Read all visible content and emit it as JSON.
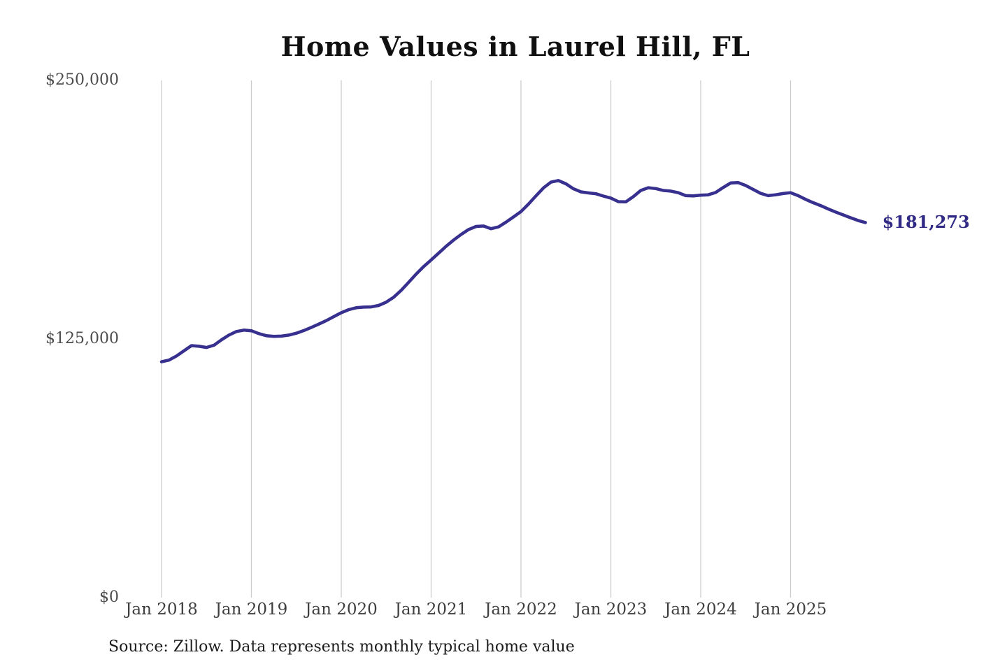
{
  "title": "Home Values in Laurel Hill, FL",
  "source_note": "Source: Zillow. Data represents monthly typical home value",
  "latest_value_label": "$181,273",
  "colors": {
    "line": "#37308f",
    "annotation": "#312b85",
    "gridline": "#cccccc",
    "y_tick_text": "#4c4c4c",
    "x_tick_text": "#3e3e3e",
    "title_text": "#101010",
    "background": "#ffffff"
  },
  "chart_data": {
    "type": "line",
    "title": "Home Values in Laurel Hill, FL",
    "series_name": "Monthly typical home value",
    "xlabel": "",
    "ylabel": "",
    "ylim": [
      0,
      250000
    ],
    "grid": "vertical-only",
    "legend": "none",
    "months": [
      "2018-01",
      "2018-02",
      "2018-03",
      "2018-04",
      "2018-05",
      "2018-06",
      "2018-07",
      "2018-08",
      "2018-09",
      "2018-10",
      "2018-11",
      "2018-12",
      "2019-01",
      "2019-02",
      "2019-03",
      "2019-04",
      "2019-05",
      "2019-06",
      "2019-07",
      "2019-08",
      "2019-09",
      "2019-10",
      "2019-11",
      "2019-12",
      "2020-01",
      "2020-02",
      "2020-03",
      "2020-04",
      "2020-05",
      "2020-06",
      "2020-07",
      "2020-08",
      "2020-09",
      "2020-10",
      "2020-11",
      "2020-12",
      "2021-01",
      "2021-02",
      "2021-03",
      "2021-04",
      "2021-05",
      "2021-06",
      "2021-07",
      "2021-08",
      "2021-09",
      "2021-10",
      "2021-11",
      "2021-12",
      "2022-01",
      "2022-02",
      "2022-03",
      "2022-04",
      "2022-05",
      "2022-06",
      "2022-07",
      "2022-08",
      "2022-09",
      "2022-10",
      "2022-11",
      "2022-12",
      "2023-01",
      "2023-02",
      "2023-03",
      "2023-04",
      "2023-05",
      "2023-06",
      "2023-07",
      "2023-08",
      "2023-09",
      "2023-10",
      "2023-11",
      "2023-12",
      "2024-01",
      "2024-02",
      "2024-03",
      "2024-04",
      "2024-05",
      "2024-06",
      "2024-07",
      "2024-08",
      "2024-09",
      "2024-10",
      "2024-11",
      "2024-12",
      "2025-01",
      "2025-02",
      "2025-03",
      "2025-04",
      "2025-05",
      "2025-06",
      "2025-07",
      "2025-08",
      "2025-09",
      "2025-10",
      "2025-11"
    ],
    "values": [
      114000,
      114800,
      116800,
      119300,
      121800,
      121500,
      120900,
      122000,
      124600,
      126900,
      128600,
      129300,
      129000,
      127600,
      126600,
      126300,
      126400,
      126900,
      127800,
      129100,
      130600,
      132200,
      133900,
      135800,
      137700,
      139200,
      140100,
      140400,
      140500,
      141200,
      142800,
      145200,
      148500,
      152400,
      156400,
      160000,
      163200,
      166500,
      169800,
      172800,
      175500,
      177900,
      179400,
      179600,
      178300,
      179200,
      181500,
      184000,
      186600,
      190200,
      194200,
      198000,
      200800,
      201600,
      200000,
      197600,
      196100,
      195600,
      195200,
      194100,
      193100,
      191400,
      191300,
      193800,
      196800,
      198100,
      197700,
      196800,
      196500,
      195700,
      194300,
      194200,
      194500,
      194700,
      195800,
      198200,
      200400,
      200600,
      199200,
      197300,
      195400,
      194300,
      194700,
      195300,
      195700,
      194300,
      192500,
      190900,
      189500,
      187900,
      186400,
      185000,
      183600,
      182300,
      181273
    ],
    "y_ticks": [
      {
        "value": 0,
        "label": "$0"
      },
      {
        "value": 125000,
        "label": "$125,000"
      },
      {
        "value": 250000,
        "label": "$250,000"
      }
    ],
    "x_ticks": [
      {
        "month": "2018-01",
        "label": "Jan 2018"
      },
      {
        "month": "2019-01",
        "label": "Jan 2019"
      },
      {
        "month": "2020-01",
        "label": "Jan 2020"
      },
      {
        "month": "2021-01",
        "label": "Jan 2021"
      },
      {
        "month": "2022-01",
        "label": "Jan 2022"
      },
      {
        "month": "2023-01",
        "label": "Jan 2023"
      },
      {
        "month": "2024-01",
        "label": "Jan 2024"
      },
      {
        "month": "2025-01",
        "label": "Jan 2025"
      }
    ],
    "annotation": {
      "text": "$181,273",
      "attached_to": "last-point"
    }
  }
}
